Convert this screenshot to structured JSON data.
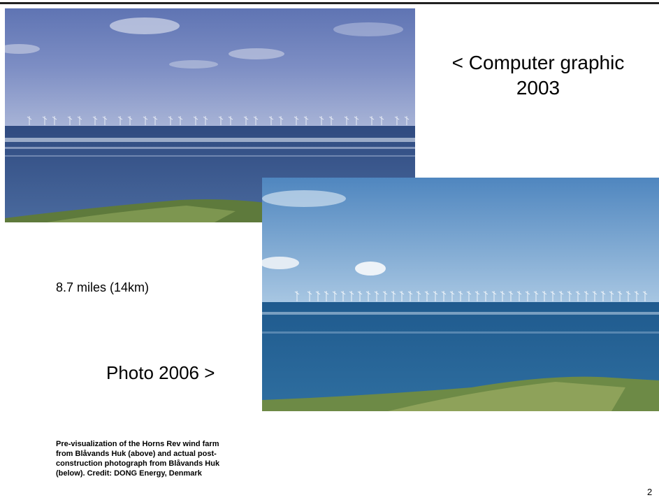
{
  "slide": {
    "top_label": {
      "line1": "< Computer graphic",
      "line2": "2003"
    },
    "distance_label": "8.7 miles (14km)",
    "bottom_label": "Photo 2006 >",
    "caption": {
      "lines": [
        "Pre-visualization of the Horns Rev wind farm",
        "from Blåvands Huk (above) and actual post-",
        "construction photograph from Blåvands Huk",
        "(below). Credit: DONG Energy, Denmark"
      ]
    },
    "page_number": 2
  }
}
